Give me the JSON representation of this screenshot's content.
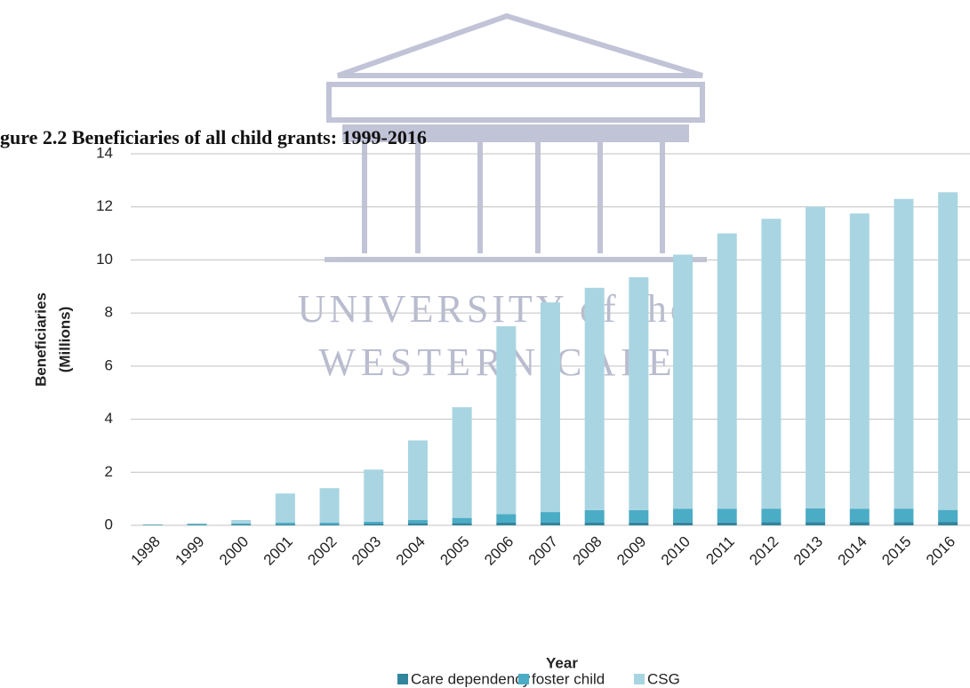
{
  "chart_data": {
    "type": "stacked_bar",
    "title": "gure 2.2 Beneficiaries of all child grants: 1999-2016",
    "watermark": [
      "UNIVERSITY of the",
      "WESTERN CAPE"
    ],
    "xlabel": "Year",
    "ylabel": [
      "Beneficiaries",
      "(Millions)"
    ],
    "categories": [
      "1998",
      "1999",
      "2000",
      "2001",
      "2002",
      "2003",
      "2004",
      "2005",
      "2006",
      "2007",
      "2008",
      "2009",
      "2010",
      "2011",
      "2012",
      "2013",
      "2014",
      "2015",
      "2016"
    ],
    "series": [
      {
        "name": "Care dependency",
        "color": "#31859c",
        "values": [
          0.01,
          0.02,
          0.03,
          0.04,
          0.04,
          0.05,
          0.08,
          0.09,
          0.1,
          0.1,
          0.1,
          0.11,
          0.11,
          0.11,
          0.12,
          0.12,
          0.12,
          0.12,
          0.13
        ]
      },
      {
        "name": "foster child",
        "color": "#4bacc6",
        "values": [
          0.02,
          0.03,
          0.04,
          0.06,
          0.06,
          0.09,
          0.12,
          0.19,
          0.32,
          0.4,
          0.47,
          0.46,
          0.51,
          0.51,
          0.51,
          0.52,
          0.5,
          0.51,
          0.45
        ]
      },
      {
        "name": "CSG",
        "color": "#a8d5e1",
        "values": [
          0,
          0.02,
          0.13,
          1.1,
          1.3,
          1.96,
          3.0,
          4.17,
          7.08,
          7.9,
          8.38,
          8.78,
          9.58,
          10.38,
          10.92,
          11.36,
          11.13,
          11.67,
          11.97
        ]
      }
    ],
    "ylim": [
      0,
      14
    ],
    "yticks": [
      0,
      2,
      4,
      6,
      8,
      10,
      12,
      14
    ],
    "grid": true
  }
}
